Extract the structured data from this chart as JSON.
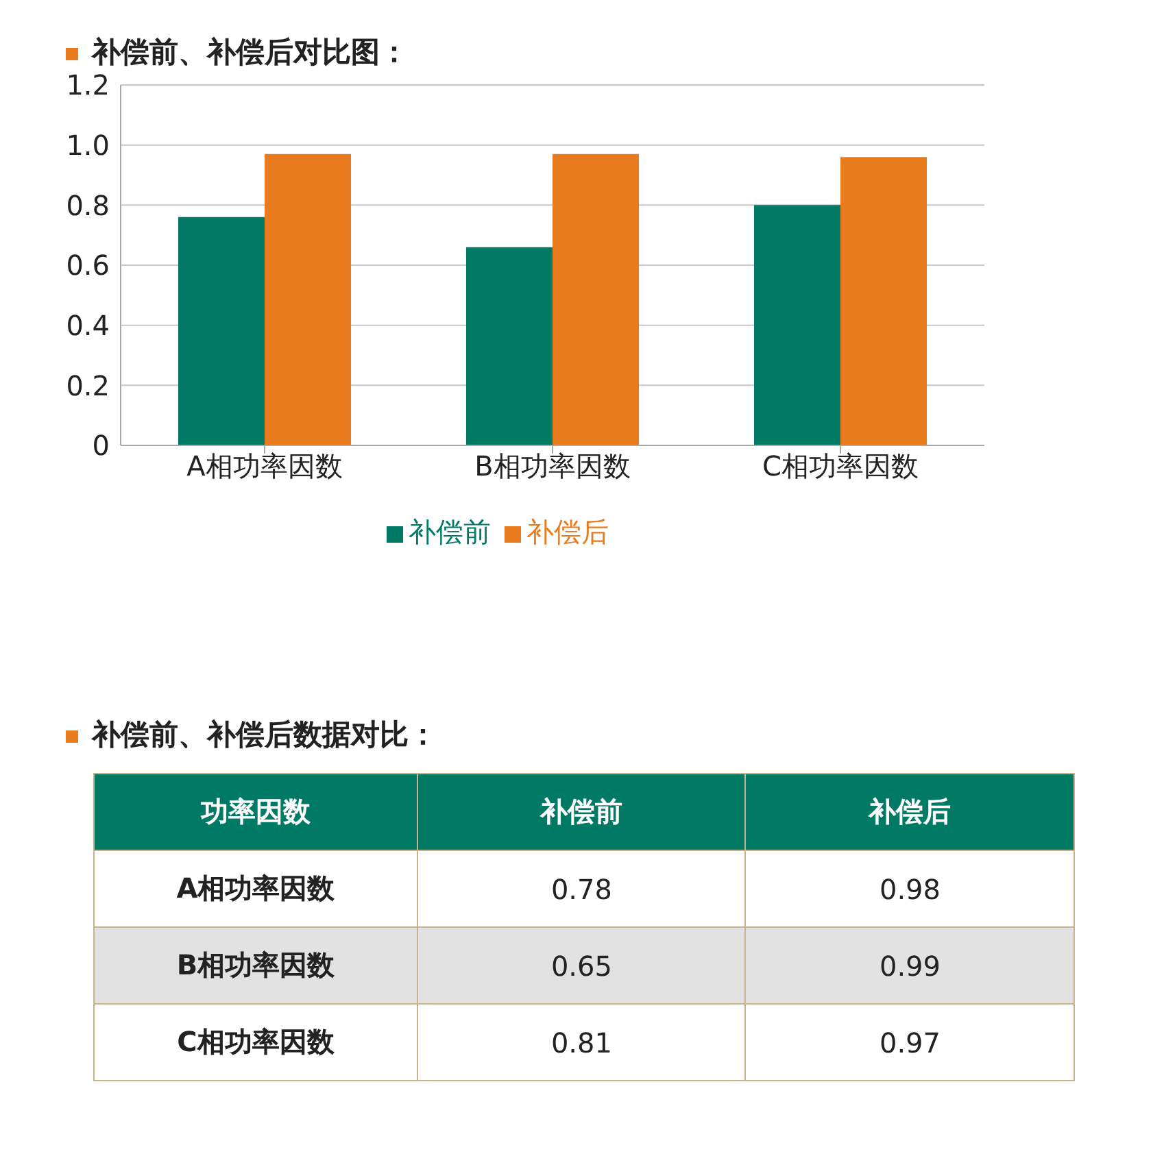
{
  "chart_data": [
    {
      "type": "bar",
      "title": "补偿前、补偿后对比图：",
      "categories": [
        "A相功率因数",
        "B相功率因数",
        "C相功率因数"
      ],
      "series": [
        {
          "name": "补偿前",
          "color": "#007a64",
          "values": [
            0.76,
            0.66,
            0.8
          ]
        },
        {
          "name": "补偿后",
          "color": "#e87b1e",
          "values": [
            0.97,
            0.97,
            0.96
          ]
        }
      ],
      "ylim": [
        0,
        1.2
      ],
      "yticks": [
        0,
        0.2,
        0.4,
        0.6,
        0.8,
        {
          "value": 1,
          "label": "1.0"
        },
        1.2
      ],
      "grid": "y",
      "legend": "bottom"
    },
    {
      "type": "other",
      "title": "补偿前、补偿后数据对比：",
      "annotations": [
        "功率因数",
        "补偿前",
        "补偿后",
        "A相功率因数",
        "0.78",
        "0.98",
        "B相功率因数",
        "0.65",
        "0.99",
        "C相功率因数",
        "0.81",
        "0.97"
      ]
    }
  ]
}
